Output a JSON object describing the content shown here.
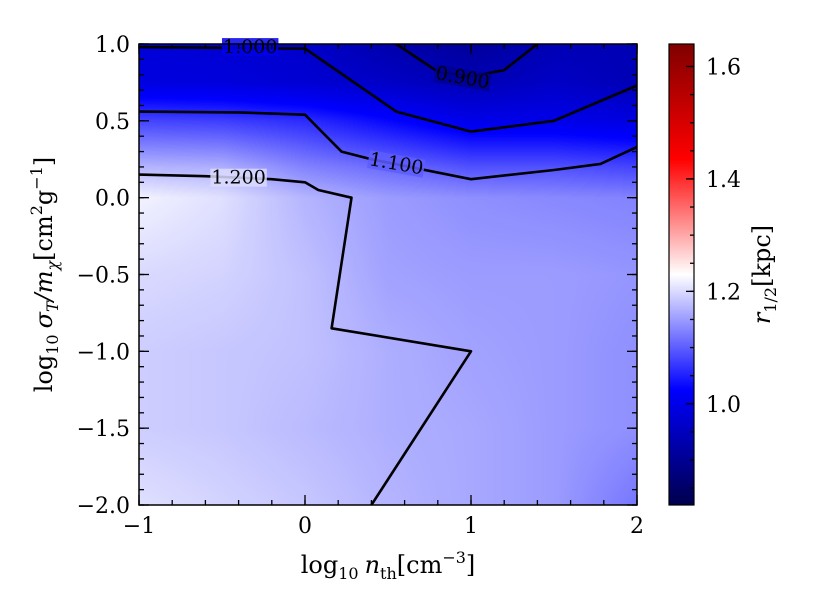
{
  "chart_data": {
    "type": "heatmap",
    "title": "",
    "xlabel_parts": {
      "pre": "log",
      "sub": "10",
      "var": "n",
      "var_sub": "th",
      "unit": "[cm",
      "unit_sup": "−3",
      "unit_end": "]"
    },
    "ylabel_parts": {
      "pre": "log",
      "sub": "10",
      "var": "σ",
      "var_sub": "T",
      "mid": "/m",
      "mid_sub": "χ",
      "unit": "[cm",
      "unit_sup1": "2",
      "unit_mid": "g",
      "unit_sup2": "−1",
      "unit_end": "]"
    },
    "colorbar_label_parts": {
      "var": "r",
      "var_sub": "1/2",
      "unit": "[kpc]"
    },
    "xlim": [
      -1,
      2
    ],
    "ylim": [
      -2,
      1
    ],
    "x_ticks": [
      -1,
      0,
      1,
      2
    ],
    "x_tick_labels": [
      "−1",
      "0",
      "1",
      "2"
    ],
    "y_ticks": [
      -2,
      -1.5,
      -1,
      -0.5,
      0,
      0.5,
      1
    ],
    "y_tick_labels": [
      "−2.0",
      "−1.5",
      "−1.0",
      "−0.5",
      "0.0",
      "0.5",
      "1.0"
    ],
    "colorbar": {
      "range": [
        0.82,
        1.64
      ],
      "ticks": [
        1.0,
        1.2,
        1.4,
        1.6
      ],
      "tick_labels": [
        "1.0",
        "1.2",
        "1.4",
        "1.6"
      ],
      "colormap": "seismic",
      "center": 1.2
    },
    "grid_x": [
      -1,
      -0.5,
      0,
      0.5,
      1,
      1.5,
      2
    ],
    "grid_y": [
      -2,
      -1.5,
      -1,
      -0.5,
      0,
      0.2,
      0.5,
      0.75,
      1
    ],
    "values": [
      [
        1.205,
        1.195,
        1.185,
        1.17,
        1.16,
        1.15,
        1.12
      ],
      [
        1.19,
        1.185,
        1.175,
        1.165,
        1.16,
        1.15,
        1.14
      ],
      [
        1.19,
        1.185,
        1.18,
        1.165,
        1.155,
        1.15,
        1.14
      ],
      [
        1.2,
        1.195,
        1.18,
        1.155,
        1.15,
        1.15,
        1.145
      ],
      [
        1.22,
        1.205,
        1.17,
        1.15,
        1.14,
        1.135,
        1.13
      ],
      [
        1.17,
        1.165,
        1.13,
        1.11,
        1.09,
        1.09,
        1.08
      ],
      [
        1.08,
        1.075,
        1.06,
        1.03,
        1.0,
        1.0,
        0.99
      ],
      [
        0.99,
        0.985,
        0.975,
        0.96,
        0.94,
        0.96,
        0.94
      ],
      [
        0.98,
        0.975,
        0.965,
        0.93,
        0.91,
        0.94,
        0.94
      ]
    ],
    "contours": [
      {
        "level": 1.2,
        "label": "1.200",
        "label_pos": [
          -0.4,
          0.13
        ],
        "label_angle": 0,
        "points": [
          [
            -1,
            0.15
          ],
          [
            -0.6,
            0.14
          ],
          [
            -0.2,
            0.12
          ],
          [
            0,
            0.1
          ],
          [
            0.08,
            0.05
          ],
          [
            0.28,
            0.0
          ],
          [
            0.16,
            -0.85
          ],
          [
            1.0,
            -1.0
          ],
          [
            0.4,
            -2.0
          ]
        ]
      },
      {
        "level": 1.1,
        "label": "1.100",
        "label_pos": [
          0.55,
          0.22
        ],
        "label_angle": 10,
        "points": [
          [
            -1,
            0.56
          ],
          [
            -0.4,
            0.555
          ],
          [
            0,
            0.54
          ],
          [
            0.22,
            0.3
          ],
          [
            0.4,
            0.25
          ],
          [
            1.0,
            0.12
          ],
          [
            1.5,
            0.18
          ],
          [
            1.78,
            0.22
          ],
          [
            2.0,
            0.33
          ]
        ]
      },
      {
        "level": 1.0,
        "label": "1.000",
        "label_pos": [
          -0.33,
          0.98
        ],
        "label_angle": 0,
        "points": [
          [
            -1,
            0.98
          ],
          [
            0,
            0.97
          ],
          [
            0.55,
            0.56
          ],
          [
            1.0,
            0.43
          ],
          [
            1.5,
            0.5
          ],
          [
            2.0,
            0.73
          ]
        ]
      },
      {
        "level": 0.9,
        "label": "0.900",
        "label_pos": [
          0.95,
          0.78
        ],
        "label_angle": 10,
        "points": [
          [
            0.55,
            1.0
          ],
          [
            0.8,
            0.82
          ],
          [
            1.0,
            0.79
          ],
          [
            1.2,
            0.83
          ],
          [
            1.4,
            1.0
          ]
        ]
      }
    ]
  }
}
